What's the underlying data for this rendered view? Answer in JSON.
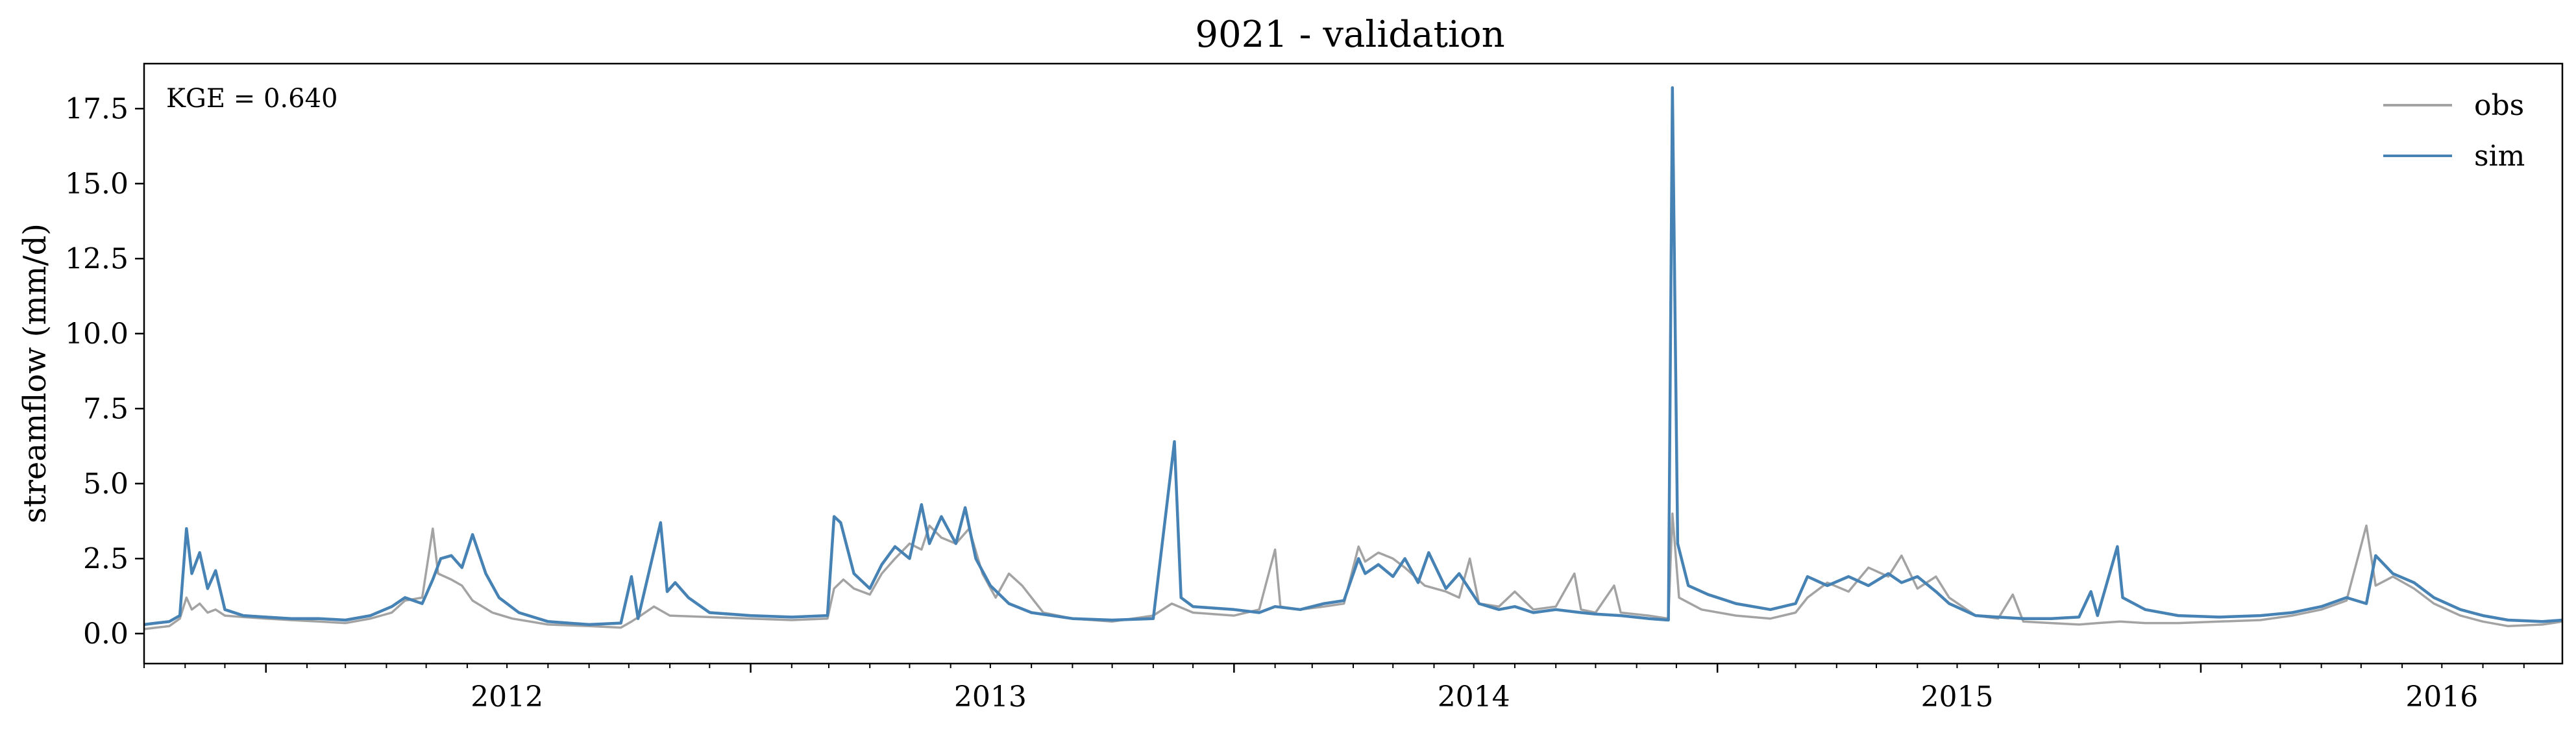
{
  "chart_data": {
    "type": "line",
    "title": "9021 - validation",
    "xlabel": "",
    "ylabel": "streamflow (mm/d)",
    "annotation": "KGE = 0.640",
    "x_range": [
      "2011-10-01",
      "2016-09-30"
    ],
    "ylim": [
      -1.0,
      19.0
    ],
    "y_ticks": [
      0.0,
      2.5,
      5.0,
      7.5,
      10.0,
      12.5,
      15.0,
      17.5
    ],
    "y_tick_labels": [
      "0.0",
      "2.5",
      "5.0",
      "7.5",
      "10.0",
      "12.5",
      "15.0",
      "17.5"
    ],
    "x_major_ticks": [
      "2012-01-01",
      "2013-01-01",
      "2014-01-01",
      "2015-01-01",
      "2016-01-01"
    ],
    "x_tick_labels": [
      "2012",
      "2013",
      "2014",
      "2015",
      "2016"
    ],
    "grid": false,
    "legend_position": "top-right",
    "series": [
      {
        "name": "obs",
        "color": "#a3a3a3",
        "points": [
          [
            "2011-10-01",
            0.15
          ],
          [
            "2011-10-10",
            0.2
          ],
          [
            "2011-10-20",
            0.25
          ],
          [
            "2011-10-28",
            0.5
          ],
          [
            "2011-11-02",
            1.2
          ],
          [
            "2011-11-06",
            0.8
          ],
          [
            "2011-11-12",
            1.0
          ],
          [
            "2011-11-18",
            0.7
          ],
          [
            "2011-11-24",
            0.8
          ],
          [
            "2011-12-01",
            0.6
          ],
          [
            "2011-12-15",
            0.55
          ],
          [
            "2012-01-01",
            0.5
          ],
          [
            "2012-01-20",
            0.45
          ],
          [
            "2012-02-10",
            0.4
          ],
          [
            "2012-03-01",
            0.35
          ],
          [
            "2012-03-20",
            0.5
          ],
          [
            "2012-04-05",
            0.7
          ],
          [
            "2012-04-15",
            1.1
          ],
          [
            "2012-04-28",
            1.2
          ],
          [
            "2012-05-06",
            3.5
          ],
          [
            "2012-05-10",
            2.0
          ],
          [
            "2012-05-20",
            1.8
          ],
          [
            "2012-05-28",
            1.6
          ],
          [
            "2012-06-05",
            1.1
          ],
          [
            "2012-06-20",
            0.7
          ],
          [
            "2012-07-05",
            0.5
          ],
          [
            "2012-08-01",
            0.3
          ],
          [
            "2012-09-01",
            0.25
          ],
          [
            "2012-09-25",
            0.2
          ],
          [
            "2012-10-03",
            0.4
          ],
          [
            "2012-10-10",
            0.6
          ],
          [
            "2012-10-20",
            0.9
          ],
          [
            "2012-11-01",
            0.6
          ],
          [
            "2012-12-01",
            0.55
          ],
          [
            "2013-01-01",
            0.5
          ],
          [
            "2013-02-01",
            0.45
          ],
          [
            "2013-02-28",
            0.5
          ],
          [
            "2013-03-05",
            1.5
          ],
          [
            "2013-03-12",
            1.8
          ],
          [
            "2013-03-20",
            1.5
          ],
          [
            "2013-04-01",
            1.3
          ],
          [
            "2013-04-10",
            2.0
          ],
          [
            "2013-04-20",
            2.5
          ],
          [
            "2013-05-01",
            3.0
          ],
          [
            "2013-05-10",
            2.8
          ],
          [
            "2013-05-16",
            3.6
          ],
          [
            "2013-05-25",
            3.2
          ],
          [
            "2013-06-05",
            3.0
          ],
          [
            "2013-06-15",
            3.5
          ],
          [
            "2013-06-25",
            2.0
          ],
          [
            "2013-07-05",
            1.2
          ],
          [
            "2013-07-15",
            2.0
          ],
          [
            "2013-07-25",
            1.6
          ],
          [
            "2013-08-10",
            0.7
          ],
          [
            "2013-09-01",
            0.5
          ],
          [
            "2013-10-01",
            0.4
          ],
          [
            "2013-11-01",
            0.6
          ],
          [
            "2013-11-15",
            1.0
          ],
          [
            "2013-12-01",
            0.7
          ],
          [
            "2014-01-01",
            0.6
          ],
          [
            "2014-01-20",
            0.8
          ],
          [
            "2014-02-01",
            2.8
          ],
          [
            "2014-02-05",
            0.9
          ],
          [
            "2014-02-20",
            0.8
          ],
          [
            "2014-03-10",
            0.9
          ],
          [
            "2014-03-25",
            1.0
          ],
          [
            "2014-04-05",
            2.9
          ],
          [
            "2014-04-10",
            2.4
          ],
          [
            "2014-04-20",
            2.7
          ],
          [
            "2014-05-01",
            2.5
          ],
          [
            "2014-05-10",
            2.2
          ],
          [
            "2014-05-25",
            1.6
          ],
          [
            "2014-06-10",
            1.4
          ],
          [
            "2014-06-20",
            1.2
          ],
          [
            "2014-06-28",
            2.5
          ],
          [
            "2014-07-05",
            1.0
          ],
          [
            "2014-07-20",
            0.9
          ],
          [
            "2014-08-01",
            1.4
          ],
          [
            "2014-08-15",
            0.8
          ],
          [
            "2014-09-01",
            0.9
          ],
          [
            "2014-09-15",
            2.0
          ],
          [
            "2014-09-20",
            0.8
          ],
          [
            "2014-10-01",
            0.7
          ],
          [
            "2014-10-15",
            1.6
          ],
          [
            "2014-10-20",
            0.7
          ],
          [
            "2014-11-10",
            0.6
          ],
          [
            "2014-11-25",
            0.5
          ],
          [
            "2014-11-28",
            4.0
          ],
          [
            "2014-12-03",
            1.2
          ],
          [
            "2014-12-20",
            0.8
          ],
          [
            "2015-01-15",
            0.6
          ],
          [
            "2015-02-10",
            0.5
          ],
          [
            "2015-03-01",
            0.7
          ],
          [
            "2015-03-10",
            1.2
          ],
          [
            "2015-03-25",
            1.7
          ],
          [
            "2015-04-10",
            1.4
          ],
          [
            "2015-04-25",
            2.2
          ],
          [
            "2015-05-10",
            1.9
          ],
          [
            "2015-05-20",
            2.6
          ],
          [
            "2015-06-01",
            1.5
          ],
          [
            "2015-06-15",
            1.9
          ],
          [
            "2015-06-25",
            1.2
          ],
          [
            "2015-07-15",
            0.6
          ],
          [
            "2015-08-01",
            0.5
          ],
          [
            "2015-08-12",
            1.3
          ],
          [
            "2015-08-20",
            0.4
          ],
          [
            "2015-09-10",
            0.35
          ],
          [
            "2015-10-01",
            0.3
          ],
          [
            "2015-10-15",
            0.35
          ],
          [
            "2015-11-01",
            0.4
          ],
          [
            "2015-11-20",
            0.35
          ],
          [
            "2015-12-15",
            0.35
          ],
          [
            "2016-01-15",
            0.4
          ],
          [
            "2016-02-15",
            0.45
          ],
          [
            "2016-03-10",
            0.6
          ],
          [
            "2016-04-01",
            0.8
          ],
          [
            "2016-04-20",
            1.1
          ],
          [
            "2016-05-05",
            3.6
          ],
          [
            "2016-05-12",
            1.6
          ],
          [
            "2016-05-25",
            1.9
          ],
          [
            "2016-06-10",
            1.5
          ],
          [
            "2016-06-25",
            1.0
          ],
          [
            "2016-07-15",
            0.6
          ],
          [
            "2016-08-01",
            0.4
          ],
          [
            "2016-08-20",
            0.25
          ],
          [
            "2016-09-15",
            0.3
          ],
          [
            "2016-09-30",
            0.4
          ]
        ]
      },
      {
        "name": "sim",
        "color": "#4682b4",
        "points": [
          [
            "2011-10-01",
            0.3
          ],
          [
            "2011-10-10",
            0.35
          ],
          [
            "2011-10-20",
            0.4
          ],
          [
            "2011-10-28",
            0.6
          ],
          [
            "2011-11-02",
            3.5
          ],
          [
            "2011-11-06",
            2.0
          ],
          [
            "2011-11-12",
            2.7
          ],
          [
            "2011-11-18",
            1.5
          ],
          [
            "2011-11-24",
            2.1
          ],
          [
            "2011-12-01",
            0.8
          ],
          [
            "2011-12-15",
            0.6
          ],
          [
            "2012-01-01",
            0.55
          ],
          [
            "2012-01-20",
            0.5
          ],
          [
            "2012-02-10",
            0.5
          ],
          [
            "2012-03-01",
            0.45
          ],
          [
            "2012-03-20",
            0.6
          ],
          [
            "2012-04-05",
            0.9
          ],
          [
            "2012-04-15",
            1.2
          ],
          [
            "2012-04-28",
            1.0
          ],
          [
            "2012-05-06",
            1.8
          ],
          [
            "2012-05-12",
            2.5
          ],
          [
            "2012-05-20",
            2.6
          ],
          [
            "2012-05-28",
            2.2
          ],
          [
            "2012-06-05",
            3.3
          ],
          [
            "2012-06-15",
            2.0
          ],
          [
            "2012-06-25",
            1.2
          ],
          [
            "2012-07-10",
            0.7
          ],
          [
            "2012-08-01",
            0.4
          ],
          [
            "2012-09-01",
            0.3
          ],
          [
            "2012-09-25",
            0.35
          ],
          [
            "2012-10-03",
            1.9
          ],
          [
            "2012-10-08",
            0.5
          ],
          [
            "2012-10-25",
            3.7
          ],
          [
            "2012-10-30",
            1.4
          ],
          [
            "2012-11-05",
            1.7
          ],
          [
            "2012-11-15",
            1.2
          ],
          [
            "2012-12-01",
            0.7
          ],
          [
            "2013-01-01",
            0.6
          ],
          [
            "2013-02-01",
            0.55
          ],
          [
            "2013-02-28",
            0.6
          ],
          [
            "2013-03-05",
            3.9
          ],
          [
            "2013-03-10",
            3.7
          ],
          [
            "2013-03-20",
            2.0
          ],
          [
            "2013-04-01",
            1.5
          ],
          [
            "2013-04-10",
            2.3
          ],
          [
            "2013-04-20",
            2.9
          ],
          [
            "2013-05-01",
            2.5
          ],
          [
            "2013-05-10",
            4.3
          ],
          [
            "2013-05-16",
            3.0
          ],
          [
            "2013-05-25",
            3.9
          ],
          [
            "2013-06-05",
            3.0
          ],
          [
            "2013-06-12",
            4.2
          ],
          [
            "2013-06-20",
            2.5
          ],
          [
            "2013-07-01",
            1.6
          ],
          [
            "2013-07-15",
            1.0
          ],
          [
            "2013-08-01",
            0.7
          ],
          [
            "2013-09-01",
            0.5
          ],
          [
            "2013-10-01",
            0.45
          ],
          [
            "2013-11-01",
            0.5
          ],
          [
            "2013-11-17",
            6.4
          ],
          [
            "2013-11-22",
            1.2
          ],
          [
            "2013-12-01",
            0.9
          ],
          [
            "2014-01-01",
            0.8
          ],
          [
            "2014-01-20",
            0.7
          ],
          [
            "2014-02-01",
            0.9
          ],
          [
            "2014-02-20",
            0.8
          ],
          [
            "2014-03-10",
            1.0
          ],
          [
            "2014-03-25",
            1.1
          ],
          [
            "2014-04-05",
            2.5
          ],
          [
            "2014-04-10",
            2.0
          ],
          [
            "2014-04-20",
            2.3
          ],
          [
            "2014-05-01",
            1.9
          ],
          [
            "2014-05-10",
            2.5
          ],
          [
            "2014-05-20",
            1.7
          ],
          [
            "2014-05-28",
            2.7
          ],
          [
            "2014-06-10",
            1.5
          ],
          [
            "2014-06-20",
            2.0
          ],
          [
            "2014-07-05",
            1.0
          ],
          [
            "2014-07-20",
            0.8
          ],
          [
            "2014-08-01",
            0.9
          ],
          [
            "2014-08-15",
            0.7
          ],
          [
            "2014-09-01",
            0.8
          ],
          [
            "2014-09-20",
            0.7
          ],
          [
            "2014-10-01",
            0.65
          ],
          [
            "2014-10-20",
            0.6
          ],
          [
            "2014-11-10",
            0.5
          ],
          [
            "2014-11-25",
            0.45
          ],
          [
            "2014-11-28",
            18.2
          ],
          [
            "2014-12-02",
            3.0
          ],
          [
            "2014-12-10",
            1.6
          ],
          [
            "2014-12-25",
            1.3
          ],
          [
            "2015-01-15",
            1.0
          ],
          [
            "2015-02-10",
            0.8
          ],
          [
            "2015-03-01",
            1.0
          ],
          [
            "2015-03-10",
            1.9
          ],
          [
            "2015-03-25",
            1.6
          ],
          [
            "2015-04-10",
            1.9
          ],
          [
            "2015-04-25",
            1.6
          ],
          [
            "2015-05-10",
            2.0
          ],
          [
            "2015-05-20",
            1.7
          ],
          [
            "2015-06-01",
            1.9
          ],
          [
            "2015-06-15",
            1.4
          ],
          [
            "2015-06-25",
            1.0
          ],
          [
            "2015-07-15",
            0.6
          ],
          [
            "2015-08-01",
            0.55
          ],
          [
            "2015-08-20",
            0.5
          ],
          [
            "2015-09-10",
            0.5
          ],
          [
            "2015-10-01",
            0.55
          ],
          [
            "2015-10-10",
            1.4
          ],
          [
            "2015-10-15",
            0.6
          ],
          [
            "2015-10-30",
            2.9
          ],
          [
            "2015-11-03",
            1.2
          ],
          [
            "2015-11-20",
            0.8
          ],
          [
            "2015-12-15",
            0.6
          ],
          [
            "2016-01-15",
            0.55
          ],
          [
            "2016-02-15",
            0.6
          ],
          [
            "2016-03-10",
            0.7
          ],
          [
            "2016-04-01",
            0.9
          ],
          [
            "2016-04-20",
            1.2
          ],
          [
            "2016-05-05",
            1.0
          ],
          [
            "2016-05-12",
            2.6
          ],
          [
            "2016-05-25",
            2.0
          ],
          [
            "2016-06-10",
            1.7
          ],
          [
            "2016-06-25",
            1.2
          ],
          [
            "2016-07-15",
            0.8
          ],
          [
            "2016-08-01",
            0.6
          ],
          [
            "2016-08-20",
            0.45
          ],
          [
            "2016-09-15",
            0.4
          ],
          [
            "2016-09-30",
            0.45
          ]
        ]
      }
    ]
  }
}
